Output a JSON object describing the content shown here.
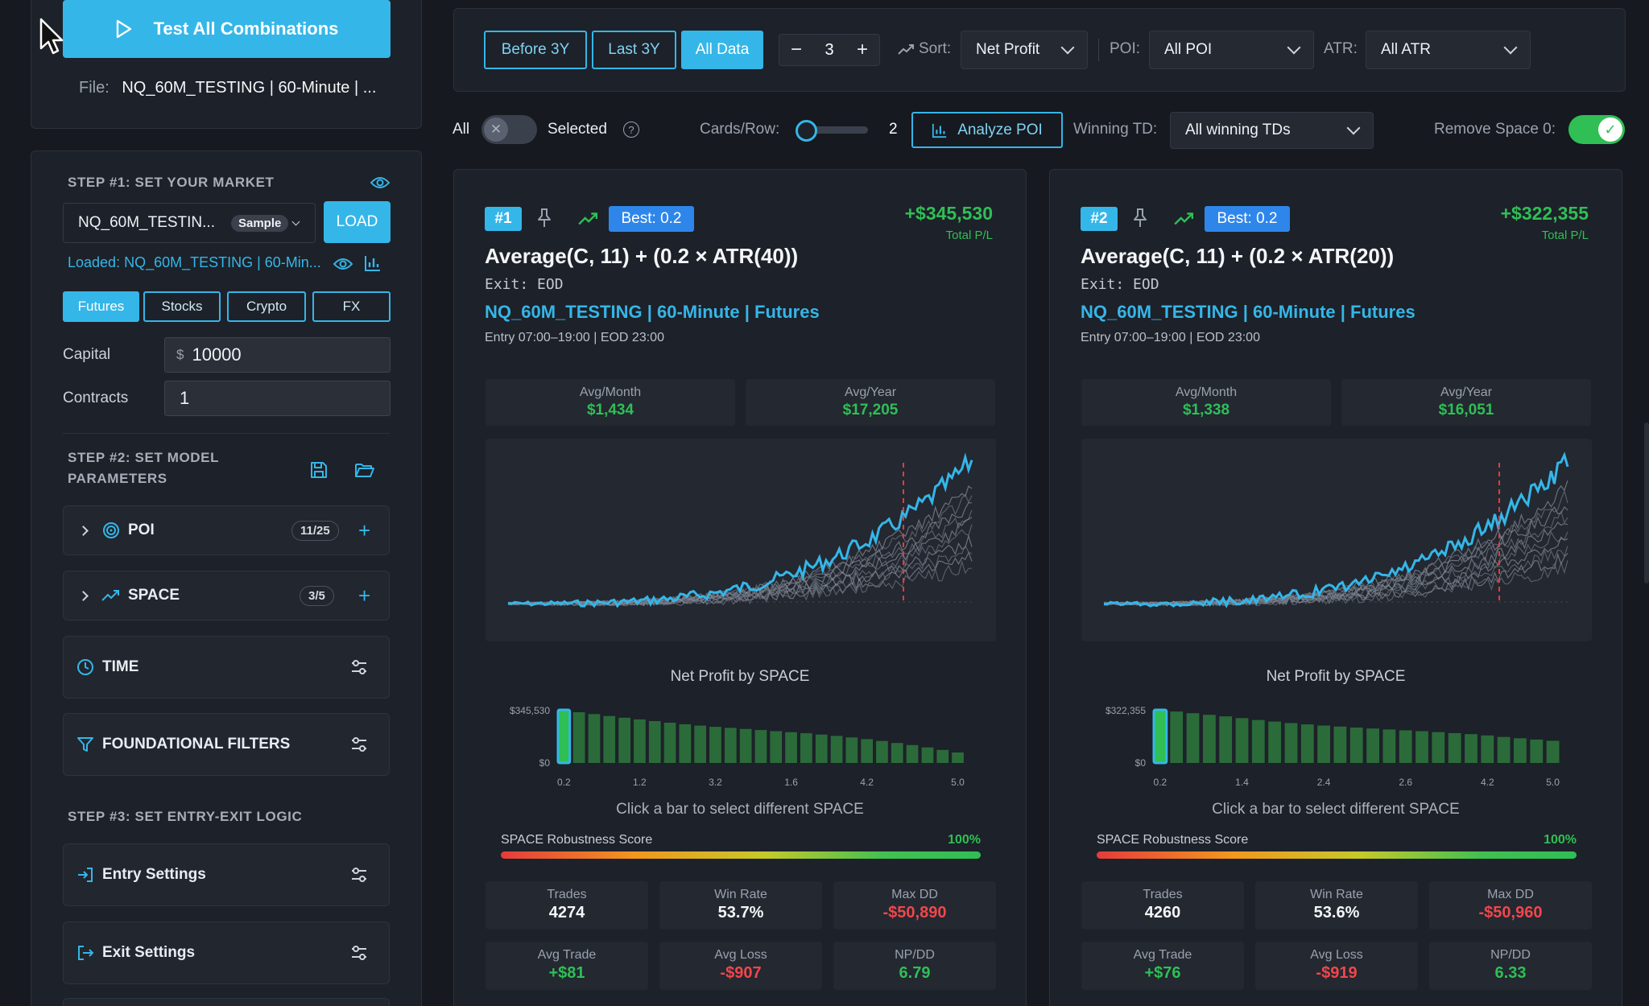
{
  "sidebar": {
    "test_all": "Test All Combinations",
    "file_label": "File:",
    "file_value": "NQ_60M_TESTING | 60-Minute | ...",
    "step1_title": "STEP #1: SET YOUR MARKET",
    "market_value": "NQ_60M_TESTIN...",
    "market_tag": "Sample",
    "load_label": "LOAD",
    "loaded_text": "Loaded: NQ_60M_TESTING | 60-Min...",
    "asset_tabs": [
      "Futures",
      "Stocks",
      "Crypto",
      "FX"
    ],
    "capital_label": "Capital",
    "capital_prefix": "$",
    "capital_value": "10000",
    "contracts_label": "Contracts",
    "contracts_value": "1",
    "step2_title_1": "STEP #2: SET MODEL",
    "step2_title_2": "PARAMETERS",
    "poi_label": "POI",
    "poi_count": "11/25",
    "space_label": "SPACE",
    "space_count": "3/5",
    "time_label": "TIME",
    "filters_label": "FOUNDATIONAL FILTERS",
    "step3_title": "STEP #3: SET ENTRY-EXIT LOGIC",
    "entry_label": "Entry Settings",
    "exit_label": "Exit Settings"
  },
  "toolbar": {
    "before3y": "Before 3Y",
    "last3y": "Last 3Y",
    "alldata": "All Data",
    "stepper_value": "3",
    "sort_label": "Sort:",
    "sort_value": "Net Profit",
    "poi_label": "POI:",
    "poi_value": "All POI",
    "atr_label": "ATR:",
    "atr_value": "All ATR"
  },
  "subbar": {
    "all_label": "All",
    "selected_label": "Selected",
    "cards_row_label": "Cards/Row:",
    "cards_row_value": "2",
    "analyze_label": "Analyze POI",
    "winning_label": "Winning TD:",
    "winning_value": "All winning TDs",
    "remove_label": "Remove Space 0:"
  },
  "cards": [
    {
      "rank": "#1",
      "best": "Best: 0.2",
      "total": "+$345,530",
      "total_label": "Total P/L",
      "title": "Average(C, 11) + (0.2 × ATR(40))",
      "exit": "Exit: EOD",
      "market": "NQ_60M_TESTING | 60-Minute | Futures",
      "session": "Entry 07:00–19:00 | EOD 23:00",
      "avg_month_label": "Avg/Month",
      "avg_month": "$1,434",
      "avg_year_label": "Avg/Year",
      "avg_year": "$17,205",
      "chart_title": "Net Profit by SPACE",
      "y_top": "$345,530",
      "y_zero": "$0",
      "x_ticks": [
        "0.2",
        "1.2",
        "3.2",
        "1.6",
        "4.2",
        "5.0"
      ],
      "hint": "Click a bar to select different SPACE",
      "robust_label": "SPACE Robustness Score",
      "robust_value": "100%",
      "trades_label": "Trades",
      "trades": "4274",
      "winrate_label": "Win Rate",
      "winrate": "53.7%",
      "maxdd_label": "Max DD",
      "maxdd": "-$50,890",
      "avgtrade_label": "Avg Trade",
      "avgtrade": "+$81",
      "avgloss_label": "Avg Loss",
      "avgloss": "-$907",
      "npdd_label": "NP/DD",
      "npdd": "6.79"
    },
    {
      "rank": "#2",
      "best": "Best: 0.2",
      "total": "+$322,355",
      "total_label": "Total P/L",
      "title": "Average(C, 11) + (0.2 × ATR(20))",
      "exit": "Exit: EOD",
      "market": "NQ_60M_TESTING | 60-Minute | Futures",
      "session": "Entry 07:00–19:00 | EOD 23:00",
      "avg_month_label": "Avg/Month",
      "avg_month": "$1,338",
      "avg_year_label": "Avg/Year",
      "avg_year": "$16,051",
      "chart_title": "Net Profit by SPACE",
      "y_top": "$322,355",
      "y_zero": "$0",
      "x_ticks": [
        "0.2",
        "1.4",
        "2.4",
        "2.6",
        "4.2",
        "5.0"
      ],
      "hint": "Click a bar to select different SPACE",
      "robust_label": "SPACE Robustness Score",
      "robust_value": "100%",
      "trades_label": "Trades",
      "trades": "4260",
      "winrate_label": "Win Rate",
      "winrate": "53.6%",
      "maxdd_label": "Max DD",
      "maxdd": "-$50,960",
      "avgtrade_label": "Avg Trade",
      "avgtrade": "+$76",
      "avgloss_label": "Avg Loss",
      "avgloss": "-$919",
      "npdd_label": "NP/DD",
      "npdd": "6.33"
    }
  ],
  "chart_data": [
    {
      "type": "bar",
      "title": "Net Profit by SPACE",
      "ylim": [
        0,
        345530
      ],
      "x_tick_labels": [
        "0.2",
        "1.2",
        "3.2",
        "1.6",
        "4.2",
        "5.0"
      ],
      "values": [
        345530,
        330000,
        318000,
        305000,
        294000,
        283000,
        272000,
        262000,
        252000,
        243000,
        235000,
        228000,
        221000,
        214000,
        207000,
        200000,
        193000,
        185000,
        176000,
        166000,
        155000,
        143000,
        130000,
        116000,
        101000,
        85000,
        68000
      ],
      "selected_index": 0
    },
    {
      "type": "bar",
      "title": "Net Profit by SPACE",
      "ylim": [
        0,
        322355
      ],
      "x_tick_labels": [
        "0.2",
        "1.4",
        "2.4",
        "2.6",
        "4.2",
        "5.0"
      ],
      "values": [
        322355,
        312000,
        302000,
        292000,
        283000,
        272000,
        261000,
        251000,
        242000,
        234000,
        227000,
        221000,
        215000,
        209000,
        203000,
        198000,
        193000,
        187000,
        181000,
        175000,
        167000,
        158000,
        150000,
        142000,
        135000
      ],
      "selected_index": 0
    }
  ],
  "colors": {
    "accent": "#35b6e8",
    "profit": "#2fbf55",
    "loss": "#f0474b",
    "badge_best": "#2f86ea"
  }
}
